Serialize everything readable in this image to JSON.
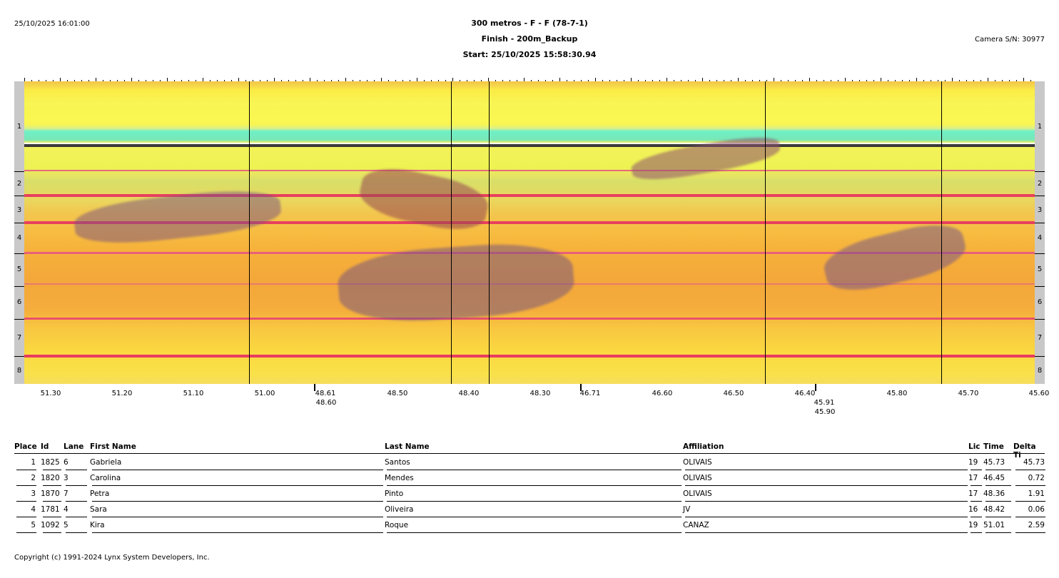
{
  "header": {
    "printed": "25/10/2025 16:01:00",
    "title": "300 metros - F - F (78-7-1)",
    "subtitle": "Finish - 200m_Backup",
    "start": "Start: 25/10/2025 15:58:30.94",
    "camera": "Camera S/N: 30977"
  },
  "lanes": [
    "1",
    "2",
    "3",
    "4",
    "5",
    "6",
    "7",
    "8"
  ],
  "time_scale": {
    "labels": [
      "51.30",
      "51.20",
      "51.10",
      "51.00",
      "48.61",
      "48.50",
      "48.40",
      "48.30",
      "46.71",
      "46.60",
      "46.50",
      "46.40",
      "45.80",
      "45.70",
      "45.60"
    ],
    "labels_secondary": [
      "48.60",
      "45.91"
    ],
    "labels_tertiary": [
      "45.90"
    ]
  },
  "results": {
    "columns": [
      "Place",
      "Id",
      "Lane",
      "First Name",
      "Last Name",
      "Affiliation",
      "Lic",
      "Time",
      "Delta Ti"
    ],
    "rows": [
      [
        "1",
        "1825",
        "6",
        "Gabriela",
        "Santos",
        "OLIVAIS",
        "19",
        "45.73",
        "45.73"
      ],
      [
        "2",
        "1820",
        "3",
        "Carolina",
        "Mendes",
        "OLIVAIS",
        "17",
        "46.45",
        "0.72"
      ],
      [
        "3",
        "1870",
        "7",
        "Petra",
        "Pinto",
        "OLIVAIS",
        "17",
        "48.36",
        "1.91"
      ],
      [
        "4",
        "1781",
        "4",
        "Sara",
        "Oliveira",
        "JV",
        "16",
        "48.42",
        "0.06"
      ],
      [
        "5",
        "1092",
        "5",
        "Kira",
        "Roque",
        "CANAZ",
        "19",
        "51.01",
        "2.59"
      ]
    ]
  },
  "footer": "Copyright (c) 1991-2024 Lynx System Developers, Inc."
}
